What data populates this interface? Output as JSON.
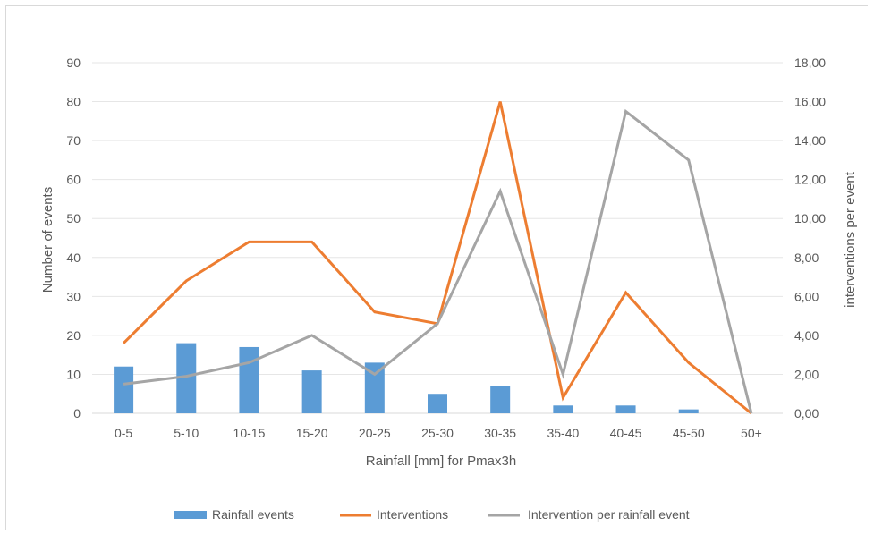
{
  "chart_data": {
    "type": "bar",
    "categories": [
      "0-5",
      "5-10",
      "10-15",
      "15-20",
      "20-25",
      "25-30",
      "30-35",
      "35-40",
      "40-45",
      "45-50",
      "50+"
    ],
    "xlabel": "Rainfall [mm] for Pmax3h",
    "ylabel": "Number of events",
    "y2label": "interventions per event",
    "ylim": [
      0,
      90
    ],
    "y2lim": [
      0,
      18
    ],
    "y_ticks": [
      "0",
      "10",
      "20",
      "30",
      "40",
      "50",
      "60",
      "70",
      "80",
      "90"
    ],
    "y2_ticks": [
      "0,00",
      "2,00",
      "4,00",
      "6,00",
      "8,00",
      "10,00",
      "12,00",
      "14,00",
      "16,00",
      "18,00"
    ],
    "grid": true,
    "legend_position": "bottom",
    "series": [
      {
        "name": "Rainfall events",
        "type": "bar",
        "axis": "left",
        "color": "#5b9bd5",
        "values": [
          12,
          18,
          17,
          11,
          13,
          5,
          7,
          2,
          2,
          1,
          0
        ]
      },
      {
        "name": "Interventions",
        "type": "line",
        "axis": "left",
        "color": "#ed7d31",
        "values": [
          18,
          34,
          44,
          44,
          26,
          23,
          80,
          4,
          31,
          13,
          0
        ]
      },
      {
        "name": "Intervention per rainfall event",
        "type": "line",
        "axis": "right",
        "color": "#a5a5a5",
        "values": [
          1.5,
          1.9,
          2.6,
          4.0,
          2.0,
          4.6,
          11.4,
          2.0,
          15.5,
          13.0,
          0.0
        ]
      }
    ]
  }
}
